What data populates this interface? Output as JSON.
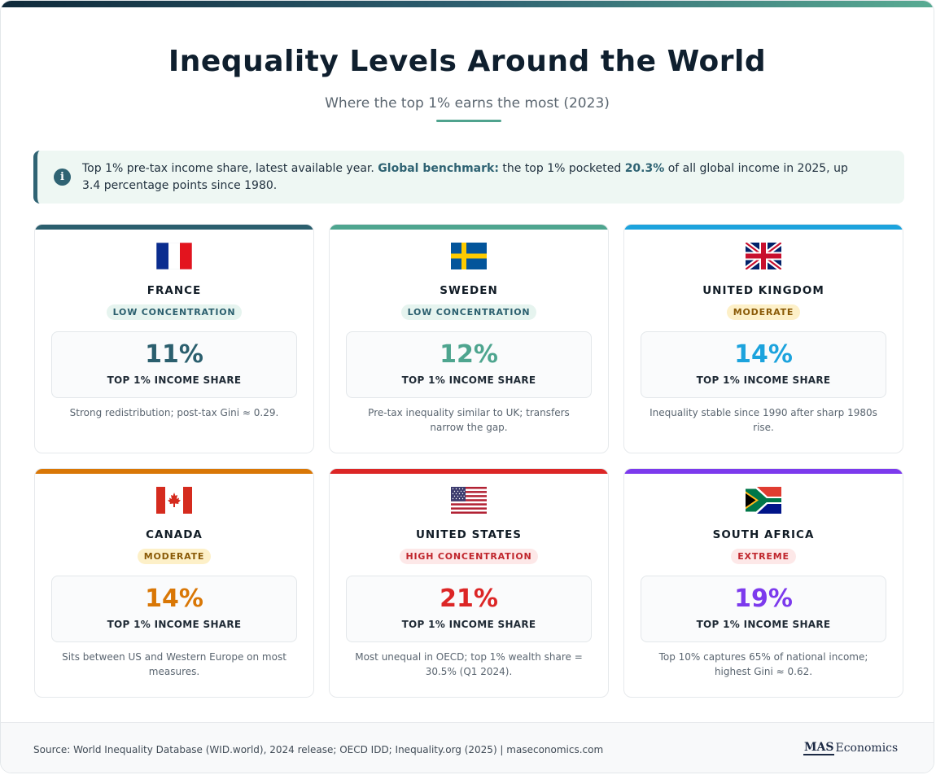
{
  "header": {
    "title": "Inequality Levels Around the World",
    "subtitle": "Where the top 1% earns the most (2023)"
  },
  "info": {
    "icon": "info-icon",
    "text_1": "Top 1% pre-tax income share, latest available year. ",
    "benchmark_label": "Global benchmark:",
    "text_2": " the top 1% pocketed ",
    "benchmark_value": "20.3%",
    "text_3": " of all global income in 2025, up 3.4 percentage points since 1980."
  },
  "stat_label": "TOP 1% INCOME SHARE",
  "cards": [
    {
      "country": "FRANCE",
      "flag": "france-flag-icon",
      "badge": "LOW CONCENTRATION",
      "share_percent": 11,
      "value": "11%",
      "note": "Strong redistribution; post-tax Gini ≈ 0.29.",
      "accent": "#2b5f6e",
      "badge_bg": "#e6f4ef",
      "badge_fg": "#2b5f6e"
    },
    {
      "country": "SWEDEN",
      "flag": "sweden-flag-icon",
      "badge": "LOW CONCENTRATION",
      "share_percent": 12,
      "value": "12%",
      "note": "Pre-tax inequality similar to UK; transfers narrow the gap.",
      "accent": "#4ea58f",
      "badge_bg": "#e6f4ef",
      "badge_fg": "#2b5f6e"
    },
    {
      "country": "UNITED KINGDOM",
      "flag": "uk-flag-icon",
      "badge": "MODERATE",
      "share_percent": 14,
      "value": "14%",
      "note": "Inequality stable since 1990 after sharp 1980s rise.",
      "accent": "#1ca3dd",
      "badge_bg": "#fdf0c8",
      "badge_fg": "#8a5a07"
    },
    {
      "country": "CANADA",
      "flag": "canada-flag-icon",
      "badge": "MODERATE",
      "share_percent": 14,
      "value": "14%",
      "note": "Sits between US and Western Europe on most measures.",
      "accent": "#d97706",
      "badge_bg": "#fdf0c8",
      "badge_fg": "#8a5a07"
    },
    {
      "country": "UNITED STATES",
      "flag": "us-flag-icon",
      "badge": "HIGH CONCENTRATION",
      "share_percent": 21,
      "value": "21%",
      "note": "Most unequal in OECD; top 1% wealth share = 30.5% (Q1 2024).",
      "accent": "#dc2626",
      "badge_bg": "#fde8e8",
      "badge_fg": "#c0262d"
    },
    {
      "country": "SOUTH AFRICA",
      "flag": "south-africa-flag-icon",
      "badge": "EXTREME",
      "share_percent": 19,
      "value": "19%",
      "note": "Top 10% captures 65% of national income; highest Gini ≈ 0.62.",
      "accent": "#7c3aed",
      "badge_bg": "#fde8e8",
      "badge_fg": "#c0262d"
    }
  ],
  "footer": {
    "source": "Source: World Inequality Database (WID.world), 2024 release; OECD IDD; Inequality.org (2025) | maseconomics.com",
    "logo_mas": "MAS",
    "logo_rest": "Economics"
  },
  "colors": {
    "title": "#0f1f2e",
    "info_accent": "#2f6373",
    "title_rule": "#4fa38e"
  }
}
